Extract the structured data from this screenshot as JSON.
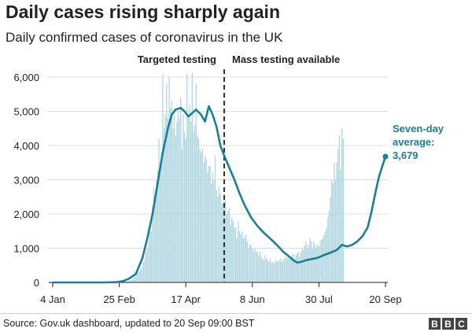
{
  "header": {
    "title": "Daily cases rising sharply again",
    "subtitle": "Daily confirmed cases of coronavirus in the UK"
  },
  "footer": {
    "source": "Source: Gov.uk dashboard, updated to 20 Sep 09:00 BST",
    "logo_letters": [
      "B",
      "B",
      "C"
    ]
  },
  "colors": {
    "bar": "#b3d7e0",
    "line": "#1a7f94",
    "grid": "#dddddd",
    "annotation": "#1a7f94"
  },
  "chart_data": {
    "type": "bar",
    "title": "Daily cases rising sharply again",
    "subtitle": "Daily confirmed cases of coronavirus in the UK",
    "x_ticks": [
      "4 Jan",
      "25 Feb",
      "17 Apr",
      "8 Jun",
      "30 Jul",
      "20 Sep"
    ],
    "x_tick_days": [
      0,
      52,
      104,
      156,
      208,
      260
    ],
    "y_ticks": [
      "0",
      "1,000",
      "2,000",
      "3,000",
      "4,000",
      "5,000",
      "6,000"
    ],
    "ylim": [
      0,
      6000
    ],
    "xlim_days": [
      0,
      260
    ],
    "grid": true,
    "phases": [
      {
        "label": "Targeted testing"
      },
      {
        "label": "Mass testing available"
      }
    ],
    "phase_divider_day": 134,
    "series": [
      {
        "name": "Daily confirmed cases",
        "kind": "bars",
        "start_day": 26,
        "values": [
          1,
          0,
          0,
          0,
          0,
          1,
          0,
          0,
          0,
          0,
          0,
          0,
          0,
          1,
          1,
          2,
          0,
          1,
          0,
          0,
          0,
          0,
          0,
          2,
          3,
          5,
          10,
          5,
          4,
          15,
          25,
          30,
          35,
          45,
          60,
          70,
          80,
          100,
          150,
          200,
          250,
          300,
          340,
          400,
          450,
          600,
          700,
          900,
          1000,
          1200,
          1600,
          1500,
          2200,
          2800,
          2500,
          3000,
          3300,
          4200,
          3500,
          3800,
          6100,
          4500,
          4900,
          5800,
          4800,
          6000,
          5100,
          5300,
          4500,
          4900,
          4300,
          4700,
          5000,
          4800,
          5400,
          3900,
          4900,
          4400,
          4200,
          6100,
          4800,
          5200,
          4700,
          6100,
          4400,
          4600,
          5800,
          4300,
          4200,
          3900,
          3800,
          3900,
          3500,
          3700,
          3600,
          3200,
          3400,
          3400,
          2900,
          3200,
          3000,
          3700,
          2700,
          2500,
          2800,
          2600,
          2300,
          2300,
          2600,
          2400,
          2000,
          2100,
          2200,
          1700,
          1900,
          1800,
          1600,
          1600,
          1300,
          1800,
          1500,
          1400,
          1500,
          1300,
          1300,
          1400,
          1200,
          1000,
          1100,
          1100,
          1000,
          900,
          1000,
          900,
          900,
          800,
          900,
          750,
          700,
          650,
          800,
          700,
          650,
          600,
          700,
          580,
          600,
          550,
          650,
          620,
          600,
          650,
          700,
          600,
          650,
          700,
          750,
          700,
          800,
          700,
          750,
          800,
          850,
          700,
          800,
          850,
          900,
          750,
          900,
          1000,
          950,
          1100,
          1200,
          1000,
          1100,
          1300,
          1200,
          1000,
          1200,
          1100,
          1000,
          1100,
          1050,
          1200,
          1250,
          1300,
          1400,
          1500,
          1600,
          1900,
          2100,
          2500,
          3000,
          2900,
          3500,
          3000,
          3500,
          3900,
          4300,
          3300,
          4500,
          4200
        ]
      },
      {
        "name": "Seven-day average",
        "kind": "line",
        "points": [
          [
            0,
            0
          ],
          [
            40,
            0
          ],
          [
            50,
            10
          ],
          [
            55,
            40
          ],
          [
            60,
            120
          ],
          [
            65,
            250
          ],
          [
            70,
            700
          ],
          [
            74,
            1300
          ],
          [
            78,
            2000
          ],
          [
            82,
            2900
          ],
          [
            86,
            3800
          ],
          [
            90,
            4500
          ],
          [
            93,
            4900
          ],
          [
            96,
            5050
          ],
          [
            100,
            5100
          ],
          [
            103,
            5000
          ],
          [
            106,
            4850
          ],
          [
            109,
            4950
          ],
          [
            112,
            5050
          ],
          [
            116,
            4900
          ],
          [
            119,
            4700
          ],
          [
            122,
            5150
          ],
          [
            125,
            4900
          ],
          [
            128,
            4550
          ],
          [
            131,
            4000
          ],
          [
            134,
            3700
          ],
          [
            138,
            3350
          ],
          [
            142,
            3000
          ],
          [
            146,
            2600
          ],
          [
            150,
            2250
          ],
          [
            155,
            1900
          ],
          [
            160,
            1650
          ],
          [
            165,
            1450
          ],
          [
            170,
            1280
          ],
          [
            175,
            1100
          ],
          [
            180,
            900
          ],
          [
            185,
            750
          ],
          [
            188,
            650
          ],
          [
            191,
            580
          ],
          [
            194,
            600
          ],
          [
            198,
            650
          ],
          [
            202,
            680
          ],
          [
            207,
            720
          ],
          [
            212,
            800
          ],
          [
            217,
            870
          ],
          [
            222,
            950
          ],
          [
            226,
            1100
          ],
          [
            230,
            1050
          ],
          [
            234,
            1100
          ],
          [
            238,
            1200
          ],
          [
            242,
            1350
          ],
          [
            246,
            1600
          ],
          [
            249,
            2050
          ],
          [
            252,
            2600
          ],
          [
            255,
            3100
          ],
          [
            258,
            3450
          ],
          [
            260,
            3679
          ]
        ]
      }
    ],
    "annotations": [
      {
        "lines": [
          "Seven-day",
          "average:",
          "3,679"
        ],
        "day": 260,
        "value": 3679
      }
    ]
  }
}
